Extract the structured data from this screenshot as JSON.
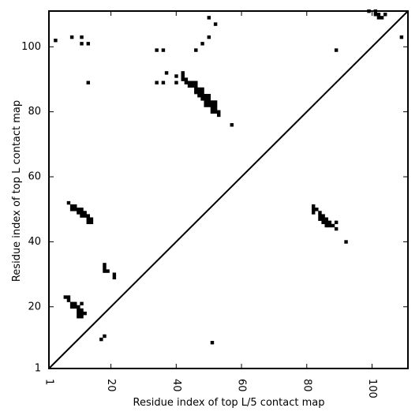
{
  "chart_data": {
    "type": "scatter",
    "title": "",
    "xlabel": "Residue index of top L/5 contact map",
    "ylabel": "Residue index of top L contact map",
    "xlim": [
      1,
      111
    ],
    "ylim": [
      1,
      111
    ],
    "xticks": [
      1,
      20,
      40,
      60,
      80,
      100
    ],
    "yticks": [
      1,
      20,
      40,
      60,
      80,
      100
    ],
    "xtick_labels": [
      "1",
      "20",
      "40",
      "60",
      "80",
      "100"
    ],
    "ytick_labels": [
      "1",
      "20",
      "40",
      "60",
      "80",
      "100"
    ],
    "grid": false,
    "marker": "square",
    "marker_color": "#000000",
    "diagonal": {
      "from": [
        1,
        1
      ],
      "to": [
        111,
        111
      ]
    },
    "upper_points": [
      [
        3,
        102
      ],
      [
        8,
        103
      ],
      [
        11,
        103
      ],
      [
        11,
        101
      ],
      [
        13,
        101
      ],
      [
        13,
        89
      ],
      [
        34,
        99
      ],
      [
        36,
        99
      ],
      [
        34,
        89
      ],
      [
        36,
        89
      ],
      [
        37,
        92
      ],
      [
        40,
        91
      ],
      [
        40,
        89
      ],
      [
        42,
        92
      ],
      [
        42,
        91
      ],
      [
        42,
        90
      ],
      [
        43,
        90
      ],
      [
        43,
        89
      ],
      [
        44,
        89
      ],
      [
        45,
        89
      ],
      [
        46,
        89
      ],
      [
        44,
        88
      ],
      [
        45,
        88
      ],
      [
        46,
        88
      ],
      [
        46,
        87
      ],
      [
        47,
        87
      ],
      [
        48,
        87
      ],
      [
        46,
        86
      ],
      [
        47,
        86
      ],
      [
        48,
        86
      ],
      [
        47,
        85
      ],
      [
        48,
        85
      ],
      [
        49,
        85
      ],
      [
        50,
        85
      ],
      [
        48,
        84
      ],
      [
        49,
        84
      ],
      [
        50,
        84
      ],
      [
        49,
        83
      ],
      [
        50,
        83
      ],
      [
        51,
        83
      ],
      [
        52,
        83
      ],
      [
        49,
        82
      ],
      [
        50,
        82
      ],
      [
        51,
        82
      ],
      [
        52,
        82
      ],
      [
        51,
        81
      ],
      [
        52,
        81
      ],
      [
        51,
        80
      ],
      [
        52,
        80
      ],
      [
        53,
        80
      ],
      [
        53,
        79
      ],
      [
        57,
        76
      ],
      [
        46,
        99
      ],
      [
        48,
        101
      ],
      [
        50,
        103
      ],
      [
        50,
        109
      ],
      [
        52,
        107
      ],
      [
        89,
        99
      ],
      [
        99,
        111
      ],
      [
        101,
        111
      ],
      [
        101,
        110
      ],
      [
        102,
        110
      ],
      [
        102,
        109
      ],
      [
        103,
        109
      ],
      [
        104,
        110
      ],
      [
        109,
        103
      ]
    ],
    "lower_points": [
      [
        7,
        52
      ],
      [
        8,
        51
      ],
      [
        9,
        51
      ],
      [
        8,
        50
      ],
      [
        9,
        50
      ],
      [
        10,
        50
      ],
      [
        11,
        50
      ],
      [
        10,
        49
      ],
      [
        11,
        49
      ],
      [
        12,
        49
      ],
      [
        11,
        48
      ],
      [
        12,
        48
      ],
      [
        13,
        48
      ],
      [
        13,
        47
      ],
      [
        14,
        47
      ],
      [
        13,
        46
      ],
      [
        14,
        46
      ],
      [
        18,
        33
      ],
      [
        18,
        32
      ],
      [
        18,
        31
      ],
      [
        19,
        31
      ],
      [
        21,
        30
      ],
      [
        21,
        29
      ],
      [
        6,
        23
      ],
      [
        7,
        23
      ],
      [
        7,
        22
      ],
      [
        8,
        21
      ],
      [
        9,
        21
      ],
      [
        8,
        20
      ],
      [
        9,
        20
      ],
      [
        10,
        20
      ],
      [
        11,
        21
      ],
      [
        10,
        19
      ],
      [
        11,
        19
      ],
      [
        10,
        18
      ],
      [
        11,
        18
      ],
      [
        12,
        18
      ],
      [
        10,
        17
      ],
      [
        11,
        17
      ],
      [
        17,
        10
      ],
      [
        18,
        11
      ],
      [
        51,
        9
      ],
      [
        82,
        51
      ],
      [
        82,
        50
      ],
      [
        83,
        50
      ],
      [
        82,
        49
      ],
      [
        84,
        49
      ],
      [
        84,
        48
      ],
      [
        85,
        48
      ],
      [
        84,
        47
      ],
      [
        85,
        47
      ],
      [
        86,
        47
      ],
      [
        85,
        46
      ],
      [
        86,
        46
      ],
      [
        87,
        46
      ],
      [
        89,
        46
      ],
      [
        86,
        45
      ],
      [
        87,
        45
      ],
      [
        88,
        45
      ],
      [
        89,
        44
      ],
      [
        92,
        40
      ]
    ]
  }
}
